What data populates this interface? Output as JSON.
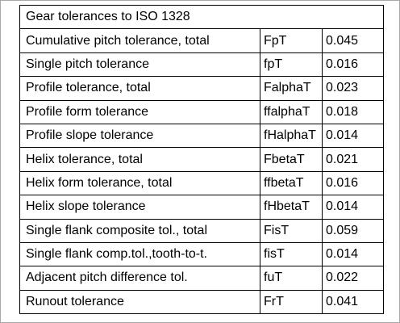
{
  "title": "Gear tolerances to ISO 1328",
  "rows": [
    {
      "name": "Cumulative pitch tolerance, total",
      "symbol": "FpT",
      "value": "0.045"
    },
    {
      "name": "Single pitch tolerance",
      "symbol": "fpT",
      "value": "0.016"
    },
    {
      "name": "Profile tolerance, total",
      "symbol": "FalphaT",
      "value": "0.023"
    },
    {
      "name": "Profile form tolerance",
      "symbol": "ffalphaT",
      "value": "0.018"
    },
    {
      "name": "Profile slope tolerance",
      "symbol": "fHalphaT",
      "value": "0.014"
    },
    {
      "name": "Helix tolerance, total",
      "symbol": "FbetaT",
      "value": "0.021"
    },
    {
      "name": "Helix form tolerance, total",
      "symbol": "ffbetaT",
      "value": "0.016"
    },
    {
      "name": "Helix slope tolerance",
      "symbol": "fHbetaT",
      "value": "0.014"
    },
    {
      "name": "Single flank composite tol., total",
      "symbol": "FisT",
      "value": "0.059"
    },
    {
      "name": "Single flank comp.tol.,tooth-to-t.",
      "symbol": "fisT",
      "value": "0.014"
    },
    {
      "name": "Adjacent pitch difference tol.",
      "symbol": "fuT",
      "value": "0.022"
    },
    {
      "name": "Runout tolerance",
      "symbol": "FrT",
      "value": "0.041"
    }
  ]
}
